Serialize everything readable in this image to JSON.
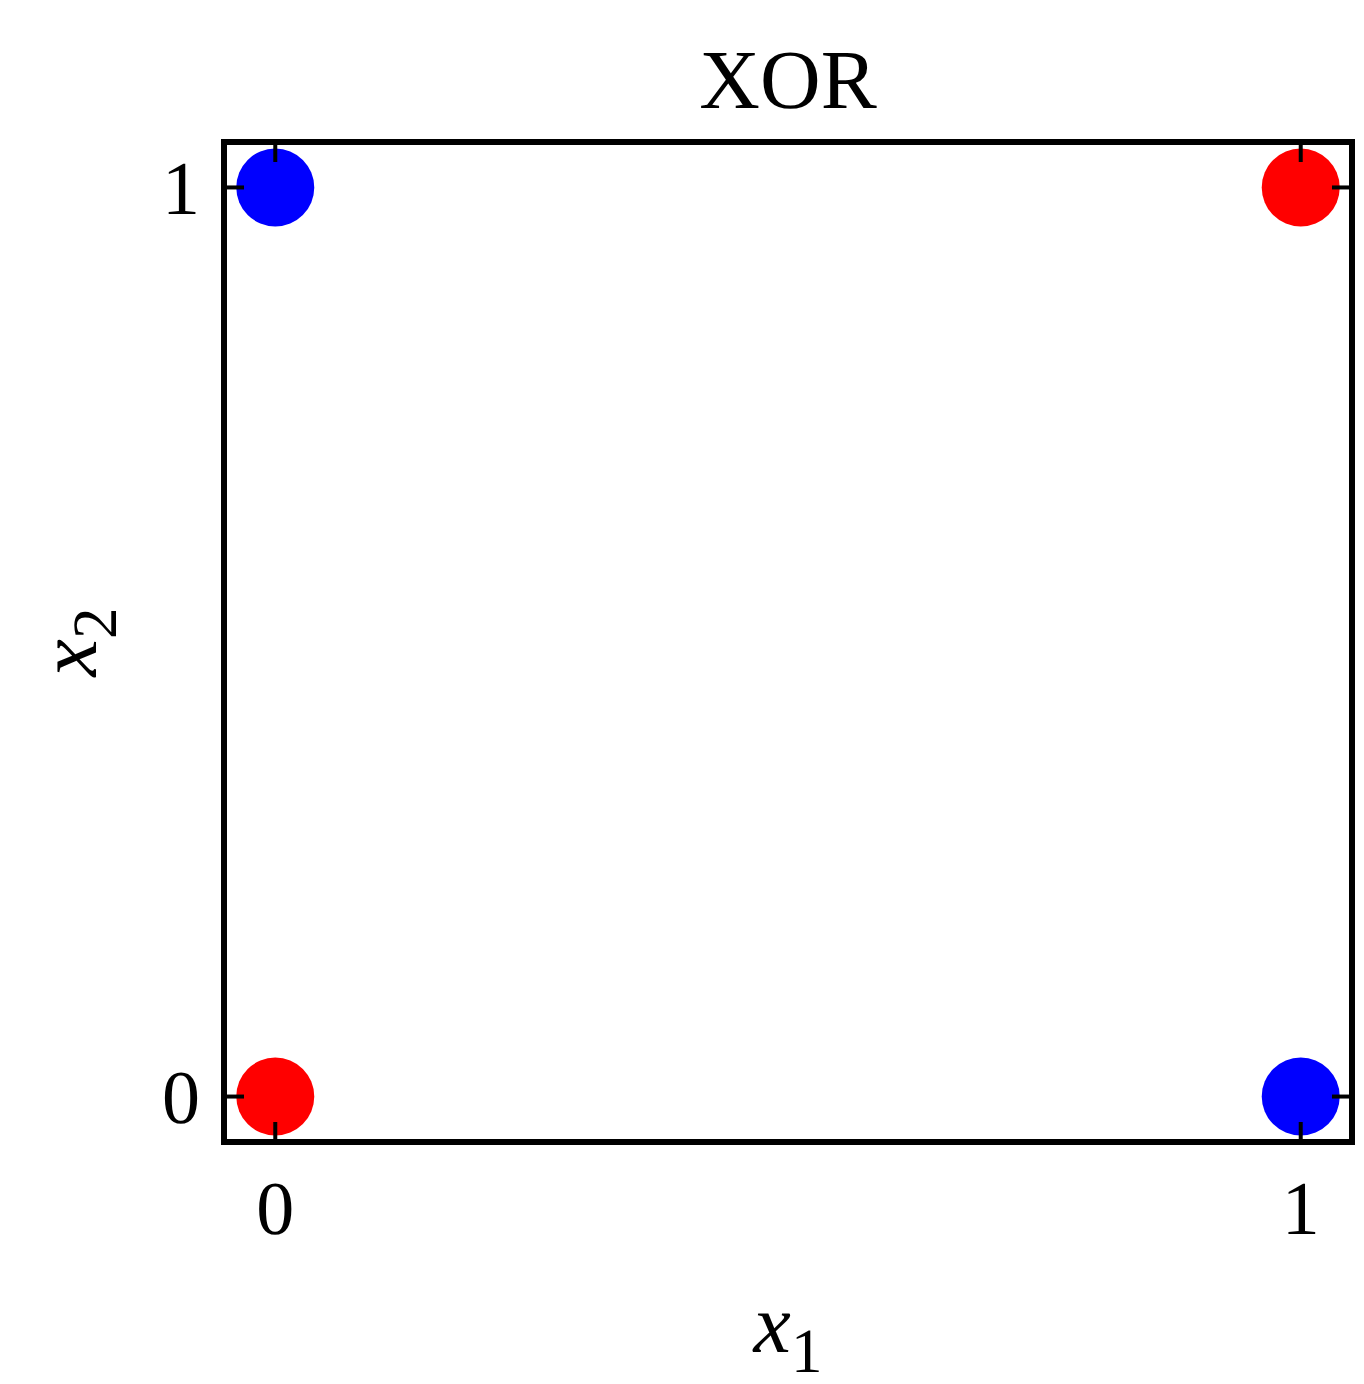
{
  "chart_data": {
    "type": "scatter",
    "title": "XOR",
    "xlabel": "x$_{1}$",
    "ylabel": "x$_{2}$",
    "x": [
      0,
      1
    ],
    "series": [
      {
        "color": "#ff0000",
        "values": [
          0,
          1
        ]
      },
      {
        "color": "#0000ff",
        "values": [
          1,
          0
        ]
      }
    ],
    "xlim": [
      -0.05,
      1.05
    ],
    "ylim": [
      -0.05,
      1.05
    ],
    "xticks": [
      0,
      1
    ],
    "yticks": [
      0,
      1
    ],
    "marker": "circle"
  }
}
